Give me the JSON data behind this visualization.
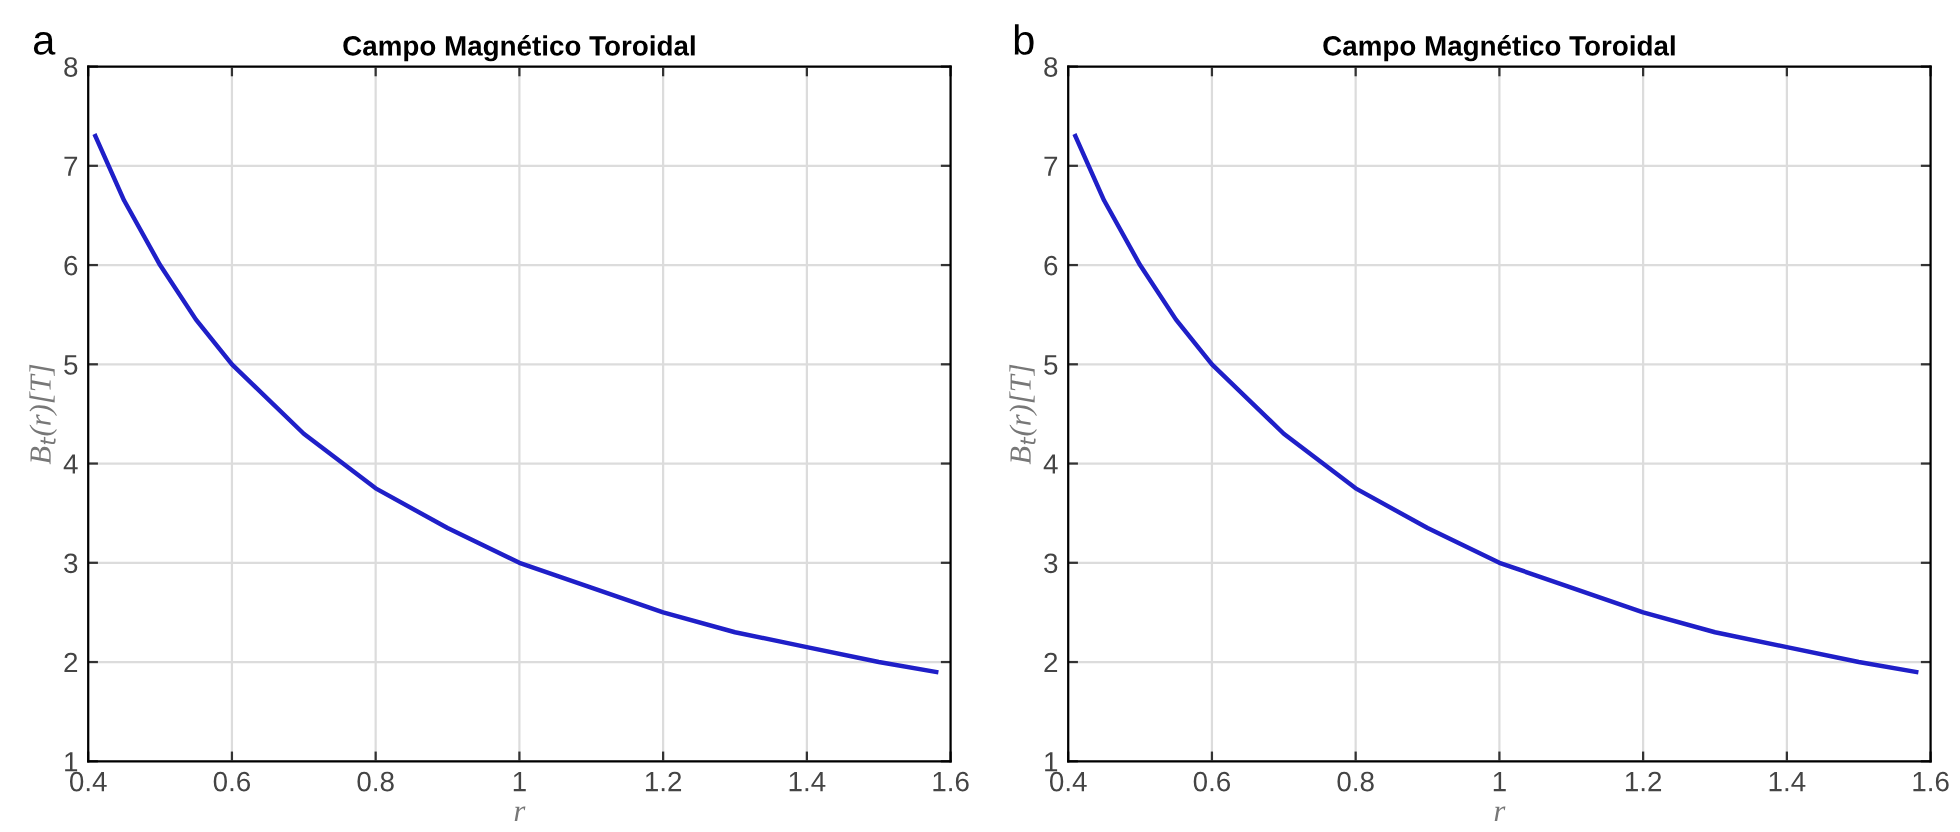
{
  "chart_data": [
    {
      "type": "line",
      "title": "Campo Magnético Toroidal",
      "xlabel": "r",
      "ylabel": "B$_{t}$(r)[T]",
      "annotations": [
        "a"
      ],
      "x": [
        0.41,
        0.45,
        0.5,
        0.55,
        0.6,
        0.7,
        0.8,
        0.9,
        1.0,
        1.1,
        1.2,
        1.3,
        1.4,
        1.5,
        1.58
      ],
      "series": [
        {
          "color": "#1f1fc8",
          "values": [
            7.3,
            6.65,
            6.0,
            5.45,
            5.0,
            4.3,
            3.75,
            3.35,
            3.0,
            2.75,
            2.5,
            2.3,
            2.15,
            2.0,
            1.9
          ]
        }
      ],
      "xlim": [
        0.4,
        1.6
      ],
      "xticks": [
        0.4,
        0.6,
        0.8,
        1,
        1.2,
        1.4,
        1.6
      ],
      "ylim": [
        1,
        8
      ],
      "yticks": [
        1,
        2,
        3,
        4,
        5,
        6,
        7,
        8
      ],
      "grid": true
    },
    {
      "type": "line",
      "title": "Campo Magnético Toroidal",
      "xlabel": "r",
      "ylabel": "B$_{t}$(r)[T]",
      "annotations": [
        "b"
      ],
      "x": [
        0.41,
        0.45,
        0.5,
        0.55,
        0.6,
        0.7,
        0.8,
        0.9,
        1.0,
        1.1,
        1.2,
        1.3,
        1.4,
        1.5,
        1.58
      ],
      "series": [
        {
          "color": "#1f1fc8",
          "values": [
            7.3,
            6.65,
            6.0,
            5.45,
            5.0,
            4.3,
            3.75,
            3.35,
            3.0,
            2.75,
            2.5,
            2.3,
            2.15,
            2.0,
            1.9
          ]
        }
      ],
      "xlim": [
        0.4,
        1.6
      ],
      "xticks": [
        0.4,
        0.6,
        0.8,
        1,
        1.2,
        1.4,
        1.6
      ],
      "ylim": [
        1,
        8
      ],
      "yticks": [
        1,
        2,
        3,
        4,
        5,
        6,
        7,
        8
      ],
      "grid": true
    }
  ]
}
